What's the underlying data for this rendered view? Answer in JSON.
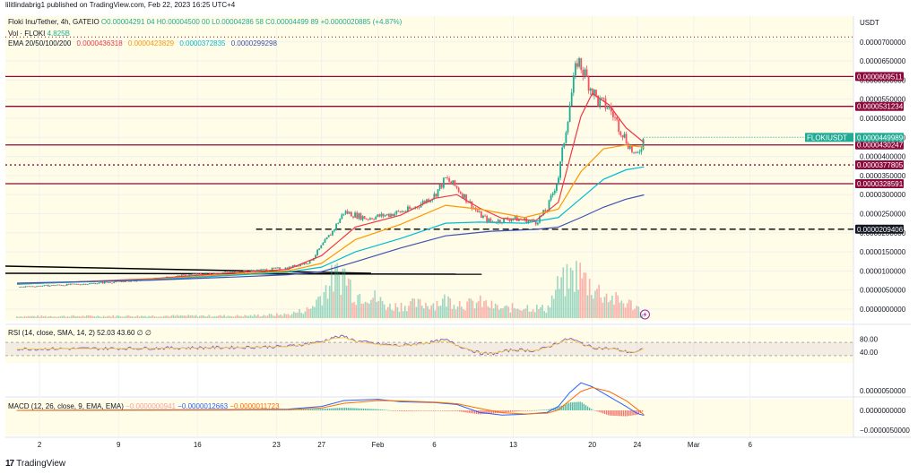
{
  "publish_line": "lilitlindabrig1 published on TradingView.com, Feb 22, 2023 16:25 UTC+4",
  "header": {
    "symbol_line": "Floki Inu/Tether, 4h, GATEIO",
    "ohlc": "O0.00004291 04 H0.00004500 00 L0.00004286 58 C0.00004499 89 +0.0000020885 (+4.87%)",
    "vol_label": "Vol · FLOKI",
    "vol_value": "4.825B",
    "ema_label": "EMA 20/50/100/200",
    "ema_values": [
      "0.0000436318",
      "0.0000423829",
      "0.0000372835",
      "0.0000299298"
    ]
  },
  "currency": "USDT",
  "brand": "TradingView",
  "colors": {
    "up": "#22ab94",
    "down": "#f7525f",
    "ema20": "#f23645",
    "ema50": "#ff9800",
    "ema100": "#00bcd4",
    "ema200": "#3f51b5",
    "level": "#8b0a3a",
    "rsi": "#7e57c2",
    "macd": "#2962ff",
    "signal": "#ff6d00"
  },
  "rsi_header": "RSI (14, close, SMA, 14, 2)  52.03  43.60  ∅  ∅",
  "macd_header": {
    "label": "MACD (12, 26, close, 9, EMA, EMA)",
    "hist": "−0.0000000941",
    "macd": "−0.0000012663",
    "signal": "−0.0000011723"
  },
  "chart_data": {
    "type": "candlestick",
    "title": "Floki Inu/Tether, 4h, GATEIO",
    "y_ticks": [
      "0.0000700000",
      "0.0000650000",
      "0.0000600000",
      "0.0000550000",
      "0.0000500000",
      "0.0000450000",
      "0.0000400000",
      "0.0000350000",
      "0.0000300000",
      "0.0000250000",
      "0.0000200000",
      "0.0000150000",
      "0.0000100000",
      "0.0000050000",
      "0.0000000000"
    ],
    "x_ticks": [
      "2",
      "9",
      "16",
      "23",
      "27",
      "Feb",
      "6",
      "13",
      "20",
      "24",
      "Mar",
      "6"
    ],
    "x_tick_days": [
      2,
      9,
      16,
      23,
      27,
      32,
      37,
      44,
      51,
      55,
      60,
      65
    ],
    "price_labels": [
      {
        "text": "0.0000609511",
        "value": 6.09511e-05,
        "style": "solid"
      },
      {
        "text": "0.0000531234",
        "value": 5.31234e-05,
        "style": "solid"
      },
      {
        "text": "0.0000430247",
        "value": 4.30247e-05,
        "style": "solid"
      },
      {
        "text": "0.0000377805",
        "value": 3.77805e-05,
        "style": "dotted"
      },
      {
        "text": "0.0000328591",
        "value": 3.28591e-05,
        "style": "solid"
      },
      {
        "text": "0.0000209406",
        "value": 2.09406e-05,
        "style": "dashed"
      }
    ],
    "last_price": {
      "label": "FLOKIUSDT",
      "text": "0.0000449989",
      "value": 4.49989e-05
    },
    "top_dotted_level": 7.13e-05,
    "price_path": [
      [
        0,
        5.8e-06
      ],
      [
        6,
        6.6e-06
      ],
      [
        12,
        7.8e-06
      ],
      [
        16,
        9.2e-06
      ],
      [
        20,
        9.8e-06
      ],
      [
        24,
        1.08e-05
      ],
      [
        26,
        1.25e-05
      ],
      [
        28,
        2.05e-05
      ],
      [
        29,
        2.55e-05
      ],
      [
        31,
        2.38e-05
      ],
      [
        33,
        2.48e-05
      ],
      [
        35,
        2.62e-05
      ],
      [
        37,
        2.98e-05
      ],
      [
        38,
        3.42e-05
      ],
      [
        39,
        3.18e-05
      ],
      [
        41,
        2.48e-05
      ],
      [
        42,
        2.28e-05
      ],
      [
        44,
        2.38e-05
      ],
      [
        46,
        2.28e-05
      ],
      [
        47,
        2.62e-05
      ],
      [
        48,
        3.45e-05
      ],
      [
        49,
        5.35e-05
      ],
      [
        49.7,
        6.55e-05
      ],
      [
        50.6,
        5.98e-05
      ],
      [
        51.5,
        5.45e-05
      ],
      [
        52.5,
        5.28e-05
      ],
      [
        53.5,
        4.72e-05
      ],
      [
        54.3,
        4.28e-05
      ],
      [
        54.9,
        3.95e-05
      ],
      [
        55.6,
        4.49989e-05
      ]
    ],
    "emas": {
      "EMA20": [
        [
          0,
          6.5e-06
        ],
        [
          12,
          8e-06
        ],
        [
          20,
          9.7e-06
        ],
        [
          24,
          1.04e-05
        ],
        [
          27,
          1.4e-05
        ],
        [
          30,
          2.15e-05
        ],
        [
          34,
          2.46e-05
        ],
        [
          37,
          2.9e-05
        ],
        [
          39,
          3e-05
        ],
        [
          41,
          2.65e-05
        ],
        [
          43,
          2.38e-05
        ],
        [
          46,
          2.32e-05
        ],
        [
          48,
          2.8e-05
        ],
        [
          50,
          5.05e-05
        ],
        [
          51,
          5.65e-05
        ],
        [
          52.5,
          5.35e-05
        ],
        [
          54,
          4.75e-05
        ],
        [
          55.6,
          4.36318e-05
        ]
      ],
      "EMA50": [
        [
          0,
          6.6e-06
        ],
        [
          12,
          7.8e-06
        ],
        [
          20,
          9.3e-06
        ],
        [
          24,
          1e-05
        ],
        [
          27,
          1.2e-05
        ],
        [
          30,
          1.82e-05
        ],
        [
          34,
          2.22e-05
        ],
        [
          38,
          2.72e-05
        ],
        [
          41,
          2.62e-05
        ],
        [
          45,
          2.4e-05
        ],
        [
          48,
          2.62e-05
        ],
        [
          50,
          3.6e-05
        ],
        [
          52,
          4.2e-05
        ],
        [
          54,
          4.3e-05
        ],
        [
          55.6,
          4.23829e-05
        ]
      ],
      "EMA100": [
        [
          0,
          6.6e-06
        ],
        [
          12,
          7.7e-06
        ],
        [
          20,
          9e-06
        ],
        [
          24,
          9.7e-06
        ],
        [
          27,
          1.1e-05
        ],
        [
          30,
          1.5e-05
        ],
        [
          34,
          1.85e-05
        ],
        [
          38,
          2.25e-05
        ],
        [
          41,
          2.28e-05
        ],
        [
          45,
          2.25e-05
        ],
        [
          48,
          2.4e-05
        ],
        [
          50,
          2.9e-05
        ],
        [
          52,
          3.4e-05
        ],
        [
          54,
          3.65e-05
        ],
        [
          55.6,
          3.72835e-05
        ]
      ],
      "EMA200": [
        [
          0,
          6.8e-06
        ],
        [
          12,
          7.6e-06
        ],
        [
          20,
          8.5e-06
        ],
        [
          24,
          9e-06
        ],
        [
          27,
          9.8e-06
        ],
        [
          30,
          1.24e-05
        ],
        [
          34,
          1.6e-05
        ],
        [
          38,
          1.92e-05
        ],
        [
          42,
          2.04e-05
        ],
        [
          46,
          2.09e-05
        ],
        [
          48,
          2.15e-05
        ],
        [
          50,
          2.4e-05
        ],
        [
          52,
          2.67e-05
        ],
        [
          54,
          2.88e-05
        ],
        [
          55.6,
          2.99298e-05
        ]
      ]
    },
    "volume_peaks": [
      [
        0,
        0.04
      ],
      [
        14,
        0.05
      ],
      [
        20,
        0.05
      ],
      [
        24,
        0.08
      ],
      [
        26,
        0.2
      ],
      [
        28,
        0.85
      ],
      [
        29,
        1.0
      ],
      [
        30,
        0.5
      ],
      [
        31,
        0.55
      ],
      [
        33,
        0.25
      ],
      [
        35,
        0.3
      ],
      [
        37,
        0.32
      ],
      [
        38,
        0.4
      ],
      [
        40,
        0.3
      ],
      [
        41,
        0.35
      ],
      [
        43,
        0.2
      ],
      [
        45,
        0.25
      ],
      [
        47,
        0.2
      ],
      [
        48,
        0.7
      ],
      [
        49,
        0.85
      ],
      [
        49.7,
        1.0
      ],
      [
        50.5,
        0.8
      ],
      [
        51.5,
        0.6
      ],
      [
        53,
        0.4
      ],
      [
        54.5,
        0.3
      ],
      [
        55.6,
        0.15
      ]
    ],
    "rsi": {
      "ticks": [
        "80.00",
        "40.00"
      ],
      "band": [
        70,
        30
      ],
      "path": [
        [
          0,
          50
        ],
        [
          10,
          52
        ],
        [
          20,
          55
        ],
        [
          24,
          58
        ],
        [
          27,
          72
        ],
        [
          28,
          85
        ],
        [
          29,
          88
        ],
        [
          30,
          75
        ],
        [
          32,
          65
        ],
        [
          34,
          60
        ],
        [
          36,
          68
        ],
        [
          37,
          72
        ],
        [
          38,
          78
        ],
        [
          39,
          62
        ],
        [
          41,
          38
        ],
        [
          42,
          35
        ],
        [
          44,
          48
        ],
        [
          46,
          45
        ],
        [
          47,
          55
        ],
        [
          48,
          70
        ],
        [
          49,
          82
        ],
        [
          50,
          68
        ],
        [
          51,
          55
        ],
        [
          52,
          52
        ],
        [
          53,
          50
        ],
        [
          54,
          42
        ],
        [
          55,
          40
        ],
        [
          55.6,
          52.03
        ]
      ]
    },
    "macd": {
      "ticks": [
        "0.0000050000",
        "0.0000000000",
        "−0.0000050000"
      ],
      "macd_path": [
        [
          0,
          0
        ],
        [
          20,
          2e-07
        ],
        [
          24,
          3e-07
        ],
        [
          27,
          1e-06
        ],
        [
          29,
          2.5e-06
        ],
        [
          32,
          2.8e-06
        ],
        [
          34,
          2.2e-06
        ],
        [
          37,
          2e-06
        ],
        [
          39,
          1.5e-06
        ],
        [
          41,
          -5e-07
        ],
        [
          43,
          -1.2e-06
        ],
        [
          45,
          -1e-06
        ],
        [
          47,
          -5e-07
        ],
        [
          48,
          1e-06
        ],
        [
          49,
          4.5e-06
        ],
        [
          50,
          7e-06
        ],
        [
          51,
          6e-06
        ],
        [
          52.5,
          3.5e-06
        ],
        [
          54,
          1e-06
        ],
        [
          55,
          -8e-07
        ],
        [
          55.6,
          -1.2663e-06
        ]
      ],
      "signal_path": [
        [
          0,
          0
        ],
        [
          20,
          1e-07
        ],
        [
          24,
          2e-07
        ],
        [
          27,
          6e-07
        ],
        [
          29,
          1.8e-06
        ],
        [
          32,
          2.5e-06
        ],
        [
          34,
          2.4e-06
        ],
        [
          37,
          2.1e-06
        ],
        [
          39,
          1.7e-06
        ],
        [
          41,
          5e-07
        ],
        [
          43,
          -6e-07
        ],
        [
          45,
          -9e-07
        ],
        [
          47,
          -7e-07
        ],
        [
          48,
          1e-07
        ],
        [
          49,
          2.5e-06
        ],
        [
          50,
          4.8e-06
        ],
        [
          51,
          5.8e-06
        ],
        [
          52.5,
          4.8e-06
        ],
        [
          54,
          2.5e-06
        ],
        [
          55,
          3e-07
        ],
        [
          55.6,
          -1.1723e-06
        ]
      ]
    }
  }
}
